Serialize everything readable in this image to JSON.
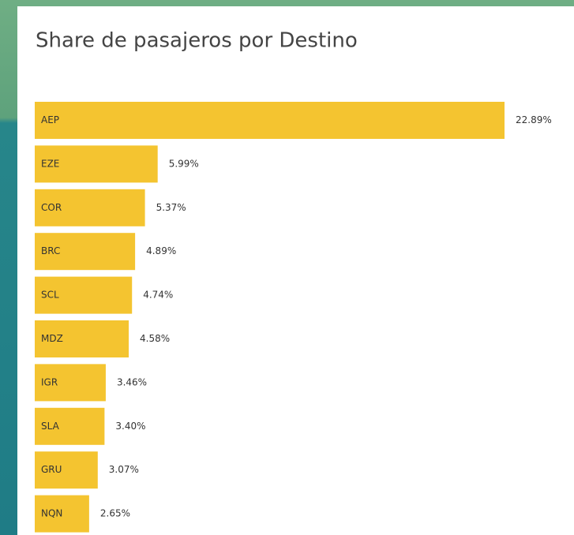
{
  "chart_data": {
    "type": "bar",
    "orientation": "horizontal",
    "title": "Share de pasajeros por Destino",
    "categories": [
      "AEP",
      "EZE",
      "COR",
      "BRC",
      "SCL",
      "MDZ",
      "IGR",
      "SLA",
      "GRU",
      "NQN"
    ],
    "values": [
      22.89,
      5.99,
      5.37,
      4.89,
      4.74,
      4.58,
      3.46,
      3.4,
      3.07,
      2.65
    ],
    "value_labels": [
      "22.89%",
      "5.99%",
      "5.37%",
      "4.89%",
      "4.74%",
      "4.58%",
      "3.46%",
      "3.40%",
      "3.07%",
      "2.65%"
    ],
    "color": "#f4c430"
  }
}
